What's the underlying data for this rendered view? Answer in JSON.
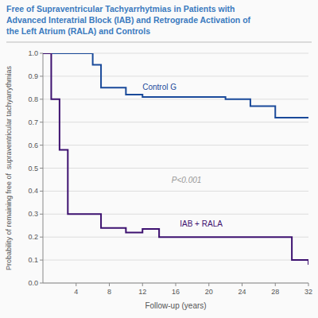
{
  "chart_data": {
    "type": "step",
    "title": "Free of Supraventricular Tachyarrhytmias in Patients with\nAdvanced Interatrial Block (IAB) and Retrograde Activation of\nthe Left Atrium (RALA) and Controls",
    "title_color": "#3a7abf",
    "x_label": "Follow-up (years)",
    "y_label": "Probability of remaining free of  supraventricular tachyarrythmias",
    "xlim": [
      0,
      32
    ],
    "ylim": [
      0,
      1.0
    ],
    "xticks": [
      4,
      8,
      12,
      16,
      20,
      24,
      28,
      32
    ],
    "yticks": [
      {
        "value": 0,
        "label": "0.0"
      },
      0.1,
      0.2,
      0.3,
      0.4,
      0.5,
      0.6,
      0.7,
      0.8,
      0.9,
      {
        "value": 1.0,
        "label": "1.0"
      }
    ],
    "grid": true,
    "series": [
      {
        "name": "Control G",
        "color": "#1a4a9a",
        "x": [
          0,
          4,
          6,
          7,
          10,
          12,
          22,
          25,
          28,
          32
        ],
        "values": [
          1.0,
          1.0,
          0.95,
          0.85,
          0.82,
          0.81,
          0.8,
          0.77,
          0.72,
          0.72
        ],
        "label_x": 12.0,
        "label_y": 0.84
      },
      {
        "name": "IAB + RALA",
        "color": "#3d1170",
        "x": [
          0,
          1,
          2,
          3,
          6,
          7,
          10,
          12,
          14,
          28,
          30,
          32
        ],
        "values": [
          1.0,
          0.8,
          0.58,
          0.3,
          0.3,
          0.24,
          0.22,
          0.235,
          0.2,
          0.2,
          0.1,
          0.08
        ],
        "label_x": 16.5,
        "label_y": 0.245
      }
    ],
    "annotations": [
      {
        "text": "P<0.001",
        "x": 15.5,
        "y": 0.435
      }
    ]
  }
}
